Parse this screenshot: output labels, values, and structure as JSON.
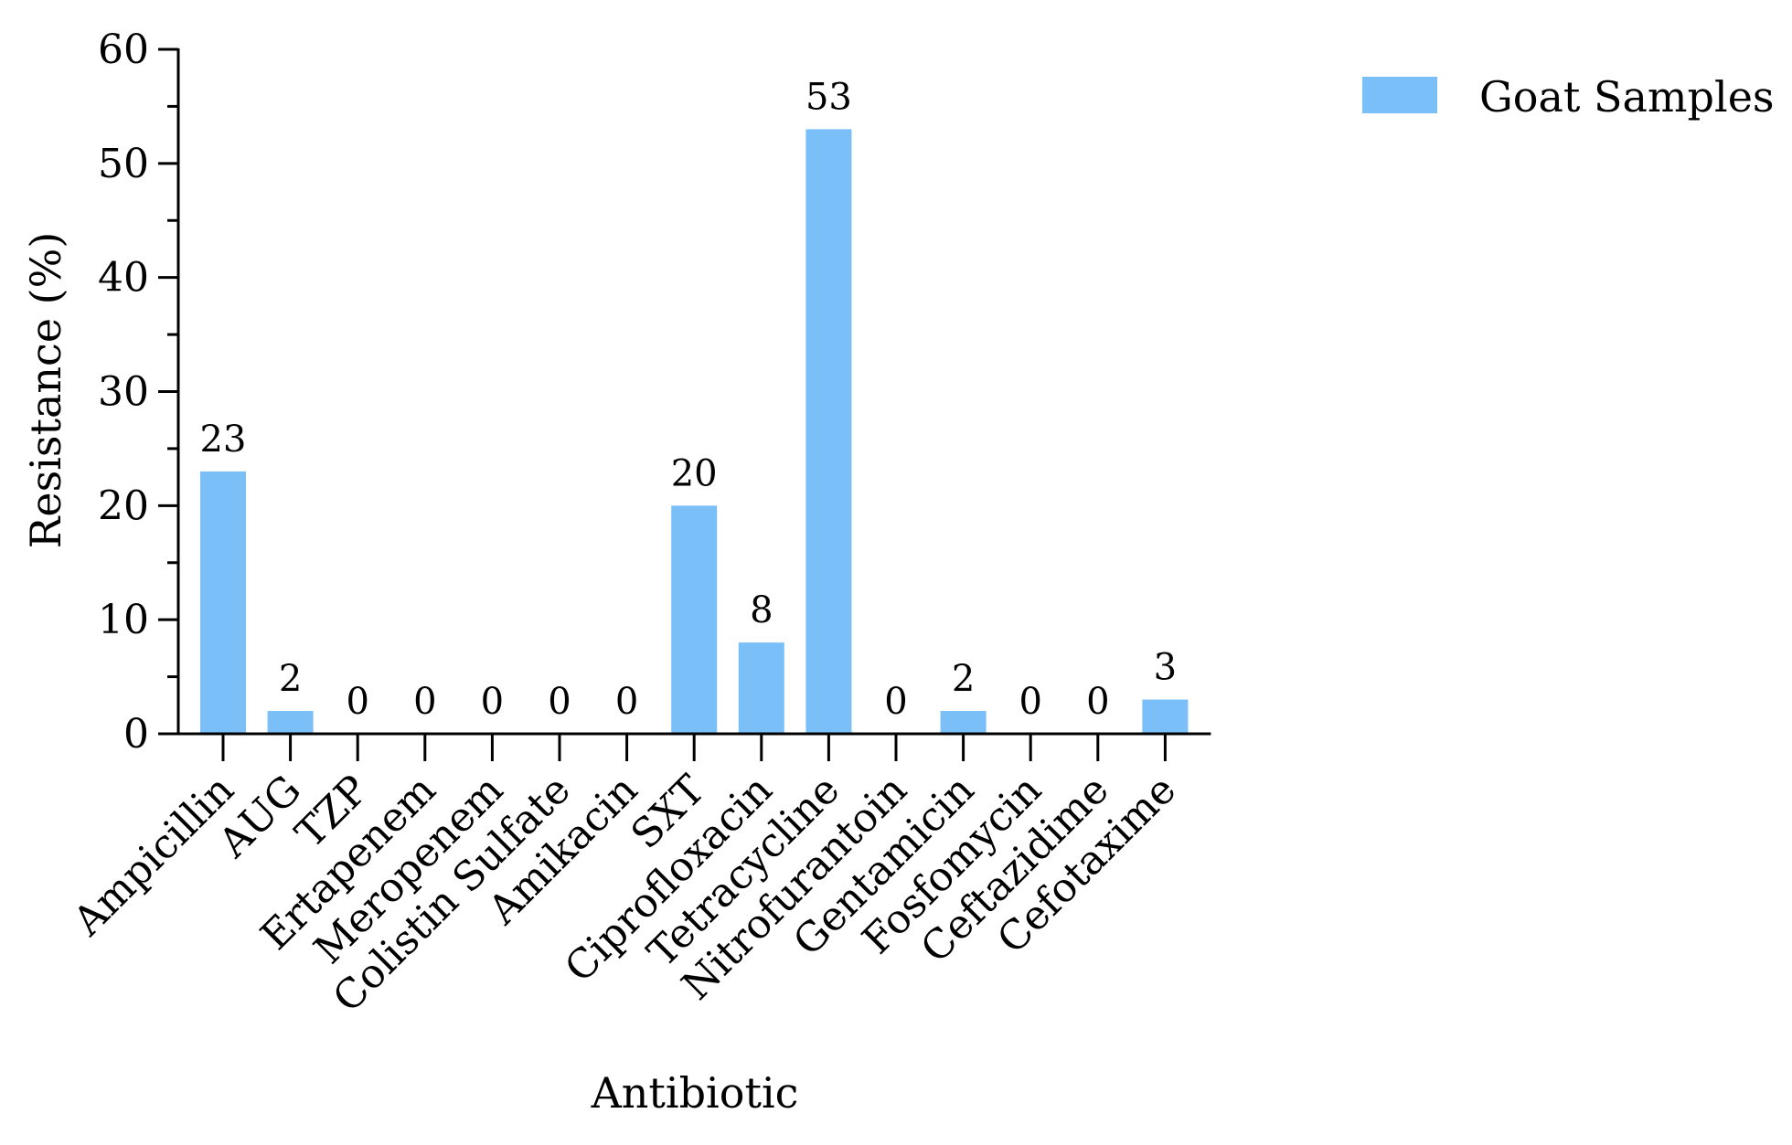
{
  "chart_data": {
    "type": "bar",
    "title": "",
    "xlabel": "Antibiotic",
    "ylabel": "Resistance (%)",
    "ylim": [
      0,
      60
    ],
    "yticks": [
      0,
      10,
      20,
      30,
      40,
      50,
      60
    ],
    "categories": [
      "Ampicillin",
      "AUG",
      "TZP",
      "Ertapenem",
      "Meropenem",
      "Colistin Sulfate",
      "Amikacin",
      "SXT",
      "Ciprofloxacin",
      "Tetracycline",
      "Nitrofurantoin",
      "Gentamicin",
      "Fosfomycin",
      "Ceftazidime",
      "Cefotaxime"
    ],
    "series": [
      {
        "name": "Goat Samples",
        "values": [
          23,
          2,
          0,
          0,
          0,
          0,
          0,
          20,
          8,
          53,
          0,
          2,
          0,
          0,
          3
        ],
        "data_labels": [
          "23",
          "2",
          "0",
          "0",
          "0",
          "0",
          "0",
          "20",
          "8",
          "53",
          "0",
          "2",
          "0",
          "0",
          "3"
        ]
      }
    ],
    "colors": {
      "bar": "#7bbff9",
      "axis": "#000000"
    },
    "legend_position": "top-right",
    "grid": false
  }
}
